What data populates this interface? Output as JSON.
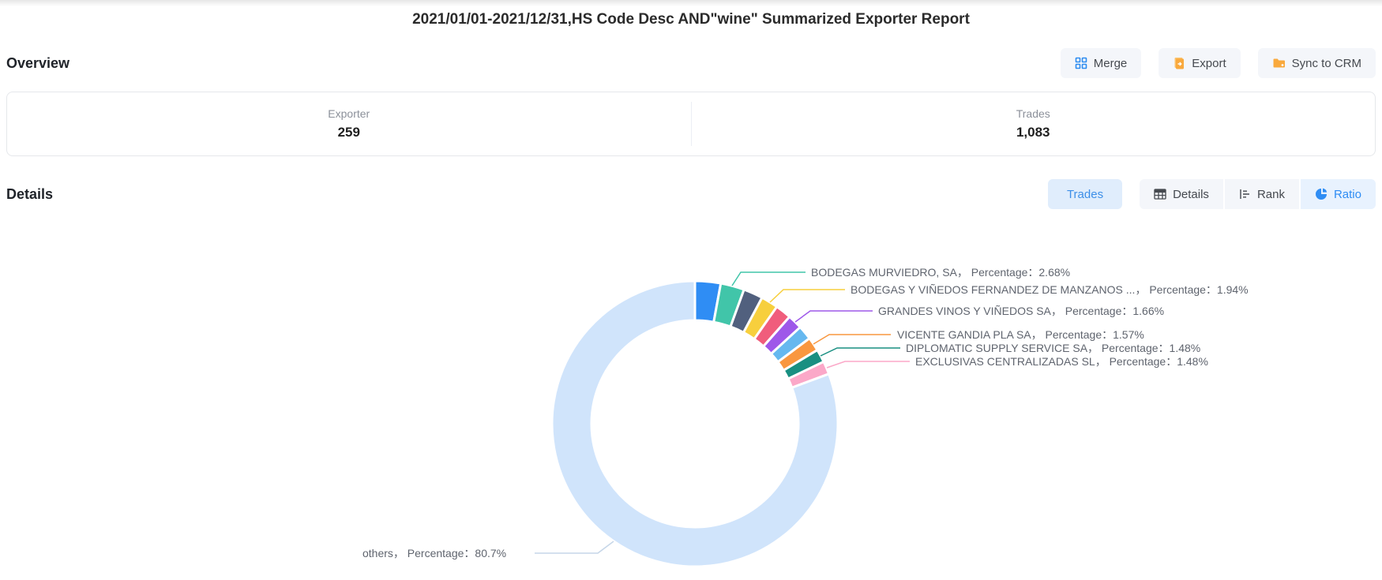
{
  "page_title": "2021/01/01-2021/12/31,HS Code Desc AND\"wine\" Summarized Exporter Report",
  "toolbar": {
    "merge": {
      "label": "Merge",
      "icon": "merge-icon",
      "icon_color": "#2d8cf0"
    },
    "export": {
      "label": "Export",
      "icon": "export-icon",
      "icon_color": "#f9a93d"
    },
    "sync": {
      "label": "Sync to CRM",
      "icon": "folder-icon",
      "icon_color": "#f9a93d"
    }
  },
  "overview": {
    "heading": "Overview",
    "stats": [
      {
        "label": "Exporter",
        "value": "259"
      },
      {
        "label": "Trades",
        "value": "1,083"
      }
    ]
  },
  "details": {
    "heading": "Details",
    "metric_tab": {
      "label": "Trades",
      "active": true
    },
    "view_tabs": [
      {
        "label": "Details",
        "icon": "table-icon",
        "active": false
      },
      {
        "label": "Rank",
        "icon": "rank-icon",
        "active": false
      },
      {
        "label": "Ratio",
        "icon": "pie-chart-icon",
        "active": true
      }
    ]
  },
  "chart_data": {
    "type": "pie",
    "variant": "donut",
    "title": "",
    "legend_position": "none",
    "unit": "percent of Trades",
    "series": [
      {
        "name": "",
        "value": 2.9,
        "value_estimated": true,
        "color": "#2f8df4",
        "label": ""
      },
      {
        "name": "BODEGAS MURVIEDRO, SA",
        "value": 2.68,
        "color": "#41c5a9",
        "label": "BODEGAS MURVIEDRO, SA， Percentage：2.68%"
      },
      {
        "name": "",
        "value": 2.2,
        "value_estimated": true,
        "color": "#51607e",
        "label": ""
      },
      {
        "name": "BODEGAS Y VIÑEDOS FERNANDEZ DE MANZANOS ...",
        "value": 1.94,
        "color": "#f7cf3d",
        "label": "BODEGAS Y VIÑEDOS FERNANDEZ DE MANZANOS ...， Percentage：1.94%"
      },
      {
        "name": "",
        "value": 1.8,
        "value_estimated": true,
        "color": "#f05d7c",
        "label": ""
      },
      {
        "name": "GRANDES VINOS Y VIÑEDOS SA",
        "value": 1.66,
        "color": "#9e58e9",
        "label": "GRANDES VINOS Y VIÑEDOS SA， Percentage：1.66%"
      },
      {
        "name": "",
        "value": 1.62,
        "value_estimated": true,
        "color": "#66b8ef",
        "label": ""
      },
      {
        "name": "VICENTE GANDIA PLA SA",
        "value": 1.57,
        "color": "#f9973f",
        "label": "VICENTE GANDIA PLA SA， Percentage：1.57%"
      },
      {
        "name": "DIPLOMATIC SUPPLY SERVICE SA",
        "value": 1.48,
        "color": "#188f81",
        "label": "DIPLOMATIC SUPPLY SERVICE SA， Percentage：1.48%"
      },
      {
        "name": "EXCLUSIVAS CENTRALIZADAS SL",
        "value": 1.48,
        "color": "#fba8c8",
        "label": "EXCLUSIVAS CENTRALIZADAS SL， Percentage：1.48%"
      },
      {
        "name": "others",
        "value": 80.7,
        "color": "#d0e4fb",
        "label": "others， Percentage：80.7%"
      }
    ]
  }
}
